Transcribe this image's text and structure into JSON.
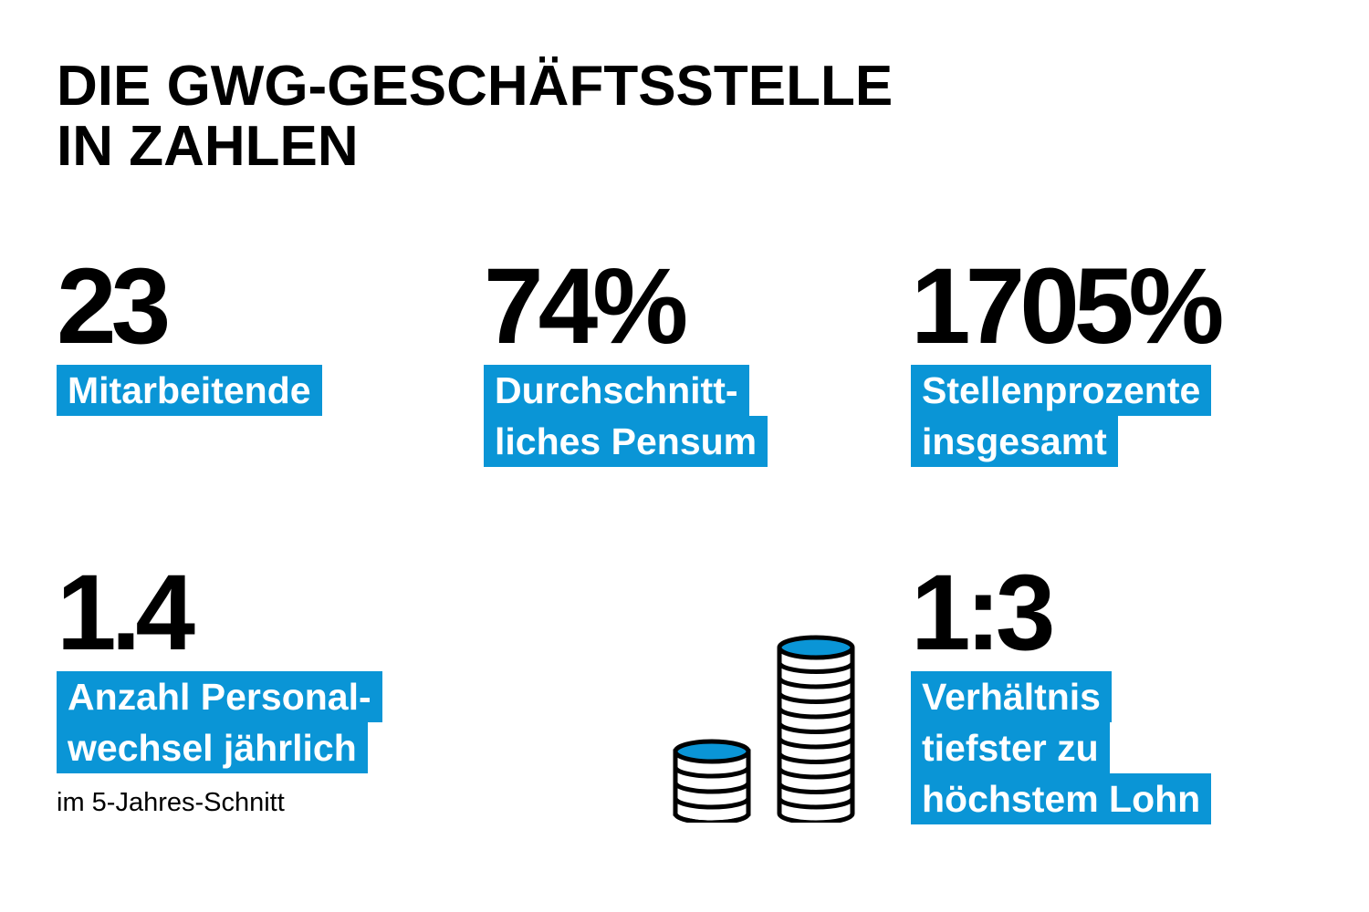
{
  "title": {
    "line1": "DIE GWG-GESCHÄFTSSTELLE",
    "line2": "IN ZAHLEN"
  },
  "stats": [
    {
      "value": "23",
      "labels": [
        "Mitarbeitende"
      ]
    },
    {
      "value": "74%",
      "labels": [
        "Durchschnitt-",
        "liches Pensum"
      ]
    },
    {
      "value": "1705%",
      "labels": [
        "Stellenprozente",
        "insgesamt"
      ]
    },
    {
      "value": "1.4",
      "labels": [
        "Anzahl Personal-",
        "wechsel jährlich"
      ],
      "note": "im 5-Jahres-Schnitt"
    },
    {
      "value": "1:3",
      "labels": [
        "Verhältnis",
        "tiefster zu",
        "höchstem Lohn"
      ]
    }
  ],
  "icon": {
    "name": "coin-stacks-icon"
  },
  "colors": {
    "accent": "#0a95d6",
    "text": "#000000",
    "background": "#ffffff"
  }
}
